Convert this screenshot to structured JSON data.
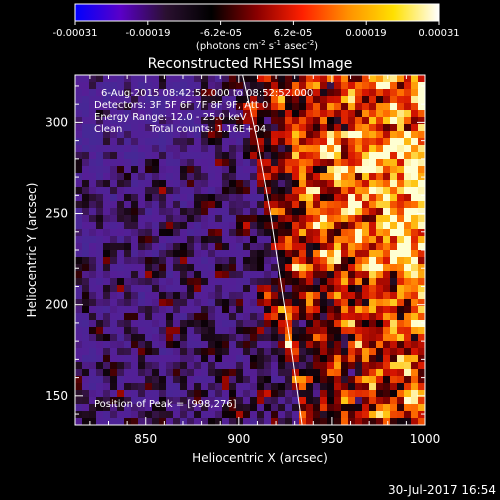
{
  "colorbar": {
    "ticks": [
      "-0.00031",
      "-0.00019",
      "-6.2e-05",
      "6.2e-05",
      "0.00019",
      "0.00031"
    ],
    "unit_label": "(photons cm",
    "unit_exp1": "-2",
    "unit_mid": " s",
    "unit_exp2": "-1",
    "unit_end": " asec",
    "unit_exp3": "-2",
    "unit_close": ")",
    "range": [
      -0.00031,
      0.00031
    ],
    "colors": [
      "#0000ff",
      "#5a00c8",
      "#2a1030",
      "#000000",
      "#8a0000",
      "#ff2000",
      "#ff9000",
      "#ffe000",
      "#ffffff"
    ]
  },
  "chart_data": {
    "type": "heatmap",
    "title": "Reconstructed RHESSI Image",
    "xlabel": "Heliocentric X (arcsec)",
    "ylabel": "Heliocentric Y (arcsec)",
    "xlim": [
      812,
      1000
    ],
    "ylim": [
      134,
      326
    ],
    "x_ticks": [
      850,
      900,
      950,
      1000
    ],
    "y_ticks": [
      150,
      200,
      250,
      300
    ],
    "annotations": [
      "6-Aug-2015 08:42:52.000 to 08:52:52.000",
      "Detectors: 3F 5F 6F 7F 8F 9F, Att 0",
      "Energy Range: 12.0 - 25.0 keV",
      "Clean",
      "Total counts: 1.16E+04"
    ],
    "peak_label": "Position of Peak = [998,276]",
    "peak": [
      998,
      276
    ],
    "limb_curve": [
      [
        902,
        326
      ],
      [
        910,
        290
      ],
      [
        917,
        250
      ],
      [
        923,
        210
      ],
      [
        929,
        170
      ],
      [
        934,
        134
      ]
    ]
  },
  "footer": {
    "timestamp": "30-Jul-2017 16:54"
  }
}
